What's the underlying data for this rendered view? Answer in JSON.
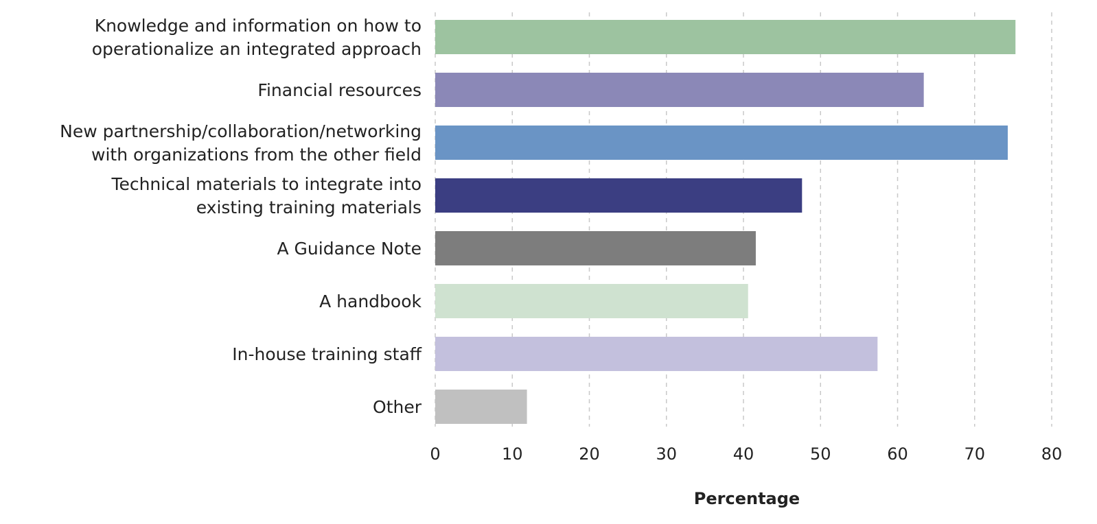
{
  "chart_data": {
    "type": "bar",
    "orientation": "horizontal",
    "categories": [
      [
        "Knowledge and information on how to",
        "operationalize an integrated approach"
      ],
      [
        "Financial resources"
      ],
      [
        "New partnership/collaboration/networking",
        "with organizations from the other field"
      ],
      [
        "Technical materials to integrate into",
        "existing training materials"
      ],
      [
        "A Guidance Note"
      ],
      [
        "A handbook"
      ],
      [
        "In-house training staff"
      ],
      [
        "Other"
      ]
    ],
    "values": [
      75.3,
      63.4,
      74.3,
      47.6,
      41.6,
      40.6,
      57.4,
      11.9
    ],
    "colors": [
      "#9dc3a0",
      "#8b88b7",
      "#6a94c5",
      "#3b3e82",
      "#7d7d7d",
      "#cfe2d0",
      "#c3c0dd",
      "#c0c0c0"
    ],
    "xlabel": "Percentage",
    "ylabel": "",
    "title": "",
    "xlim": [
      0,
      80
    ],
    "xticks": [
      0,
      10,
      20,
      30,
      40,
      50,
      60,
      70,
      80
    ],
    "grid": "vertical-dashed",
    "legend": "none"
  }
}
